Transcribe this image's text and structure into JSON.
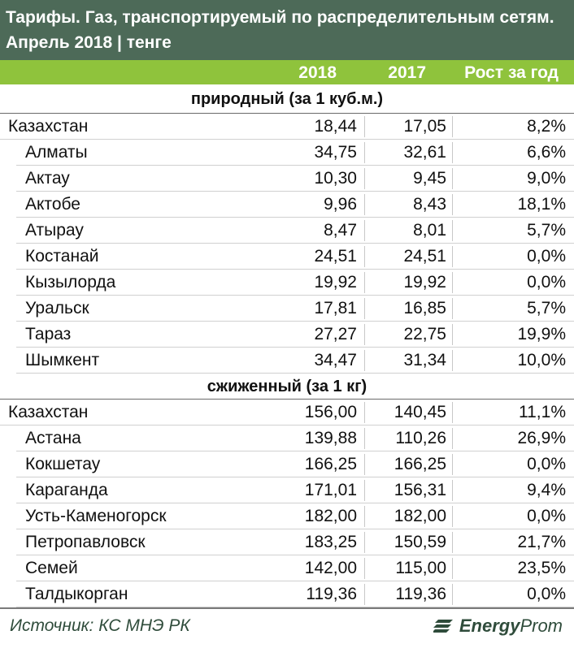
{
  "header": {
    "title_line1": "Тарифы. Газ, транспортируемый по распределительным сетям.",
    "title_line2": "Апрель 2018 | тенге"
  },
  "columns": {
    "year_current": "2018",
    "year_previous": "2017",
    "growth": "Рост за год"
  },
  "sections": [
    {
      "title": "природный (за 1 куб.м.)",
      "rows": [
        {
          "name": "Казахстан",
          "v2018": "18,44",
          "v2017": "17,05",
          "growth": "8,2%",
          "total": true
        },
        {
          "name": "Алматы",
          "v2018": "34,75",
          "v2017": "32,61",
          "growth": "6,6%"
        },
        {
          "name": "Актау",
          "v2018": "10,30",
          "v2017": "9,45",
          "growth": "9,0%"
        },
        {
          "name": "Актобе",
          "v2018": "9,96",
          "v2017": "8,43",
          "growth": "18,1%"
        },
        {
          "name": "Атырау",
          "v2018": "8,47",
          "v2017": "8,01",
          "growth": "5,7%"
        },
        {
          "name": "Костанай",
          "v2018": "24,51",
          "v2017": "24,51",
          "growth": "0,0%"
        },
        {
          "name": "Кызылорда",
          "v2018": "19,92",
          "v2017": "19,92",
          "growth": "0,0%"
        },
        {
          "name": "Уральск",
          "v2018": "17,81",
          "v2017": "16,85",
          "growth": "5,7%"
        },
        {
          "name": "Тараз",
          "v2018": "27,27",
          "v2017": "22,75",
          "growth": "19,9%"
        },
        {
          "name": "Шымкент",
          "v2018": "34,47",
          "v2017": "31,34",
          "growth": "10,0%"
        }
      ]
    },
    {
      "title": "сжиженный (за 1 кг)",
      "rows": [
        {
          "name": "Казахстан",
          "v2018": "156,00",
          "v2017": "140,45",
          "growth": "11,1%",
          "total": true
        },
        {
          "name": "Астана",
          "v2018": "139,88",
          "v2017": "110,26",
          "growth": "26,9%"
        },
        {
          "name": "Кокшетау",
          "v2018": "166,25",
          "v2017": "166,25",
          "growth": "0,0%"
        },
        {
          "name": "Караганда",
          "v2018": "171,01",
          "v2017": "156,31",
          "growth": "9,4%"
        },
        {
          "name": "Усть-Каменогорск",
          "v2018": "182,00",
          "v2017": "182,00",
          "growth": "0,0%"
        },
        {
          "name": "Петропавловск",
          "v2018": "183,25",
          "v2017": "150,59",
          "growth": "21,7%"
        },
        {
          "name": "Семей",
          "v2018": "142,00",
          "v2017": "115,00",
          "growth": "23,5%"
        },
        {
          "name": "Талдыкорган",
          "v2018": "119,36",
          "v2017": "119,36",
          "growth": "0,0%"
        }
      ]
    }
  ],
  "footer": {
    "source": "Источник: КС МНЭ РК",
    "logo_bold": "Energy",
    "logo_rest": "Prom"
  },
  "colors": {
    "title_bg": "#4d6a58",
    "header_bg": "#8fc33c",
    "brand_text": "#2f4c3b"
  }
}
